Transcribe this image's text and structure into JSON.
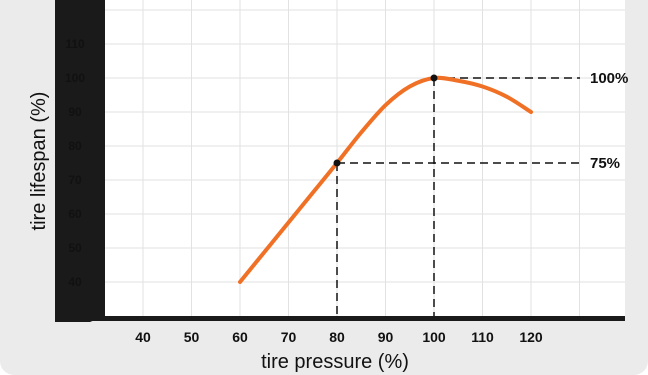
{
  "chart_data": {
    "type": "line",
    "title": "",
    "xlabel": "tire pressure (%)",
    "ylabel": "tire lifespan (%)",
    "xlim": [
      30,
      130
    ],
    "ylim": [
      30,
      120
    ],
    "x_ticks": [
      40,
      50,
      60,
      70,
      80,
      90,
      100,
      110,
      120
    ],
    "y_ticks": [
      40,
      50,
      60,
      70,
      80,
      90,
      100,
      110
    ],
    "grid": true,
    "colors": {
      "line": "#f07025",
      "axis": "#1a1a1a",
      "background": "#ebebeb",
      "plot": "#ffffff"
    },
    "series": [
      {
        "x": [
          60,
          65,
          70,
          75,
          80,
          85,
          90,
          95,
          100,
          105,
          110,
          115,
          120
        ],
        "y": [
          40,
          48.75,
          57.5,
          66.25,
          75,
          84,
          92,
          97.5,
          100,
          99.2,
          97.5,
          94.5,
          90
        ]
      }
    ],
    "annotations": [
      {
        "x": 80,
        "y": 75,
        "label": "75%"
      },
      {
        "x": 100,
        "y": 100,
        "label": "100%"
      }
    ]
  }
}
